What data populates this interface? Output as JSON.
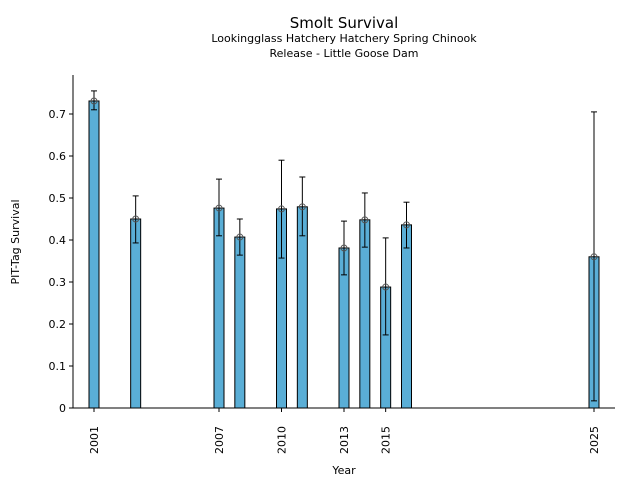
{
  "chart_data": {
    "type": "bar",
    "title": "Smolt Survival",
    "subtitle_lines": [
      "Lookingglass Hatchery Hatchery Spring Chinook",
      "Release - Little Goose Dam"
    ],
    "xlabel": "Year",
    "ylabel": "PIT-Tag Survival",
    "ylim": [
      0,
      0.79
    ],
    "xlim": [
      2000.1,
      2026
    ],
    "yticks": [
      "0",
      "0.1",
      "0.2",
      "0.3",
      "0.4",
      "0.5",
      "0.6",
      "0.7"
    ],
    "xticks": [
      "2001",
      "2007",
      "2010",
      "2013",
      "2015",
      "2025"
    ],
    "x": [
      2001,
      2003,
      2007,
      2008,
      2010,
      2011,
      2013,
      2014,
      2015,
      2016,
      2025
    ],
    "values": [
      0.731,
      0.45,
      0.476,
      0.407,
      0.474,
      0.479,
      0.381,
      0.448,
      0.288,
      0.436,
      0.36
    ],
    "err_low": [
      0.71,
      0.393,
      0.41,
      0.364,
      0.357,
      0.41,
      0.317,
      0.383,
      0.174,
      0.381,
      0.017
    ],
    "err_high": [
      0.755,
      0.505,
      0.545,
      0.45,
      0.59,
      0.55,
      0.445,
      0.512,
      0.405,
      0.49,
      0.705
    ],
    "bar_color": "#5aaed6"
  }
}
